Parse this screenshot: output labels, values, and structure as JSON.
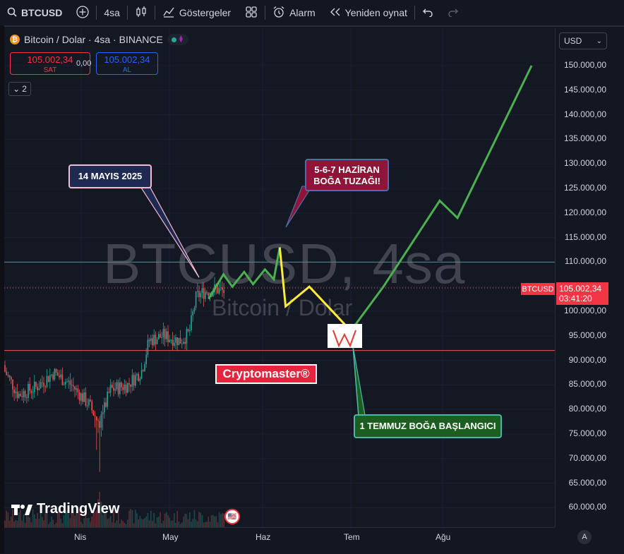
{
  "toolbar": {
    "symbol": "BTCUSD",
    "interval": "4sa",
    "indicators_label": "Göstergeler",
    "alarm_label": "Alarm",
    "replay_label": "Yeniden oynat"
  },
  "legend": {
    "title": "Bitcoin / Dolar · 4sa · BINANCE",
    "sell_price": "105.002,34",
    "sell_label": "SAT",
    "spread": "0,00",
    "buy_price": "105.002,34",
    "buy_label": "AL",
    "collapsed_count": "2"
  },
  "currency_select": "USD",
  "watermark": {
    "main": "BTCUSD, 4sa",
    "sub": "Bitcoin / Dolar"
  },
  "price_axis": [
    "150.000,00",
    "145.000,00",
    "140.000,00",
    "135.000,00",
    "130.000,00",
    "125.000,00",
    "120.000,00",
    "115.000,00",
    "110.000,00",
    "105.000,00",
    "100.000,00",
    "95.000,00",
    "90.000,00",
    "85.000,00",
    "80.000,00",
    "75.000,00",
    "70.000,00",
    "65.000,00",
    "60.000,00"
  ],
  "time_axis": [
    "Nis",
    "May",
    "Haz",
    "Tem",
    "Ağu"
  ],
  "last_price": {
    "symbol_tag": "BTCUSD",
    "price": "105.002,34",
    "countdown": "03:41:20"
  },
  "annotations": {
    "may14": "14 MAYIS 2025",
    "june_trap_line1": "5-6-7 HAZİRAN",
    "june_trap_line2": "BOĞA TUZAĞI!",
    "july_start": "1 TEMMUZ BOĞA BAŞLANGICI",
    "brand": "Cryptomaster®"
  },
  "branding": "TradingView",
  "colors": {
    "background": "#131722",
    "up": "#26a69a",
    "down": "#ef5350",
    "green_path": "#4caf50",
    "yellow_path": "#ffeb3b",
    "price_tag": "#f23645"
  },
  "chart_data": {
    "type": "line",
    "title": "",
    "ylim": [
      57500,
      152500
    ],
    "scenario_green": [
      {
        "x": "2025-05-14",
        "y": 102500
      },
      {
        "x": "2025-05-19",
        "y": 107500
      },
      {
        "x": "2025-05-22",
        "y": 105000
      },
      {
        "x": "2025-05-26",
        "y": 108000
      },
      {
        "x": "2025-05-29",
        "y": 105500
      },
      {
        "x": "2025-06-02",
        "y": 108500
      },
      {
        "x": "2025-06-05",
        "y": 106500
      },
      {
        "x": "2025-06-07",
        "y": 113000
      }
    ],
    "scenario_yellow": [
      {
        "x": "2025-06-07",
        "y": 113000
      },
      {
        "x": "2025-06-09",
        "y": 101000
      },
      {
        "x": "2025-06-17",
        "y": 105000
      },
      {
        "x": "2025-07-01",
        "y": 96000
      }
    ],
    "scenario_green_future": [
      {
        "x": "2025-07-01",
        "y": 96000
      },
      {
        "x": "2025-07-12",
        "y": 105000
      },
      {
        "x": "2025-07-31",
        "y": 122500
      },
      {
        "x": "2025-08-06",
        "y": 119000
      },
      {
        "x": "2025-08-31",
        "y": 150000
      }
    ],
    "horizontal_lines": [
      {
        "y": 110000,
        "color": "#26a69a"
      },
      {
        "y": 92000,
        "color": "#ef5350"
      }
    ]
  }
}
